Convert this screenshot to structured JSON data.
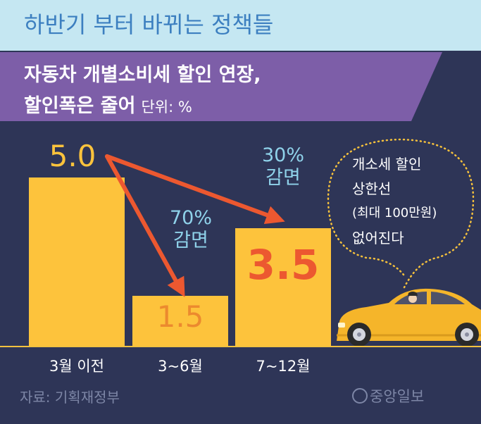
{
  "header": {
    "title": "하반기 부터 바뀌는 정책들"
  },
  "subtitle": {
    "line1": "자동차 개별소비세 할인 연장,",
    "line2": "할인폭은 줄어",
    "unit": "단위: %"
  },
  "chart_data": {
    "type": "bar",
    "categories": [
      "3월 이전",
      "3~6월",
      "7~12월"
    ],
    "values": [
      5.0,
      1.5,
      3.5
    ],
    "value_labels": [
      "5.0",
      "1.5",
      "3.5"
    ],
    "annotations": [
      {
        "from": "3월 이전",
        "to": "3~6월",
        "line1": "70%",
        "line2": "감면"
      },
      {
        "from": "3월 이전",
        "to": "7~12월",
        "line1": "30%",
        "line2": "감면"
      }
    ],
    "unit": "%",
    "ylim": [
      0,
      5.0
    ],
    "grid": false,
    "legend": "none"
  },
  "callout": {
    "lines": [
      "개소세 할인",
      "상한선",
      "(최대 100만원)",
      "없어진다"
    ]
  },
  "footer": {
    "source": "자료: 기획재정부",
    "brand": "중앙일보"
  },
  "colors": {
    "background": "#2e3557",
    "top_band": "#c5e7f2",
    "banner": "#7d5ea8",
    "bar": "#fdc33c",
    "arrow": "#ec5830",
    "annotation_text": "#8fd2ea",
    "highlight_value": "#ec5830",
    "car": "#f5b52a"
  }
}
